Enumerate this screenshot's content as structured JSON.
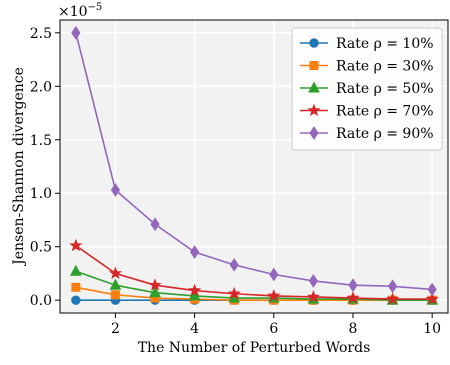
{
  "chart_data": {
    "type": "line",
    "xlabel": "The Number of Perturbed Words",
    "ylabel": "Jensen-Shannon divergence",
    "y_scale_label": "×10",
    "y_scale_exponent": "−5",
    "x": [
      1,
      2,
      3,
      4,
      5,
      6,
      7,
      8,
      9,
      10
    ],
    "xlim": [
      0.6,
      10.4
    ],
    "ylim": [
      -0.12,
      2.62
    ],
    "xticks": [
      2,
      4,
      6,
      8,
      10
    ],
    "yticks": [
      0.0,
      0.5,
      1.0,
      1.5,
      2.0,
      2.5
    ],
    "grid": true,
    "legend_position": "top-right",
    "background": "#f2f2f2",
    "series": [
      {
        "name": "Rate ρ = 10%",
        "color": "#1f77b4",
        "marker": "circle",
        "values": [
          0.0,
          0.0,
          0.0,
          0.0,
          0.0,
          0.0,
          0.0,
          0.0,
          0.0,
          0.0
        ]
      },
      {
        "name": "Rate ρ = 30%",
        "color": "#ff7f0e",
        "marker": "square",
        "values": [
          0.12,
          0.05,
          0.02,
          0.01,
          0.0,
          0.0,
          0.0,
          0.0,
          0.0,
          0.0
        ]
      },
      {
        "name": "Rate ρ = 50%",
        "color": "#2ca02c",
        "marker": "triangle",
        "values": [
          0.27,
          0.14,
          0.07,
          0.04,
          0.02,
          0.02,
          0.01,
          0.01,
          0.0,
          0.0
        ]
      },
      {
        "name": "Rate ρ = 70%",
        "color": "#d62728",
        "marker": "star",
        "values": [
          0.51,
          0.25,
          0.14,
          0.09,
          0.06,
          0.04,
          0.03,
          0.02,
          0.01,
          0.01
        ]
      },
      {
        "name": "Rate ρ = 90%",
        "color": "#9467bd",
        "marker": "diamond",
        "values": [
          2.5,
          1.03,
          0.71,
          0.45,
          0.33,
          0.24,
          0.18,
          0.14,
          0.13,
          0.1
        ]
      }
    ]
  }
}
